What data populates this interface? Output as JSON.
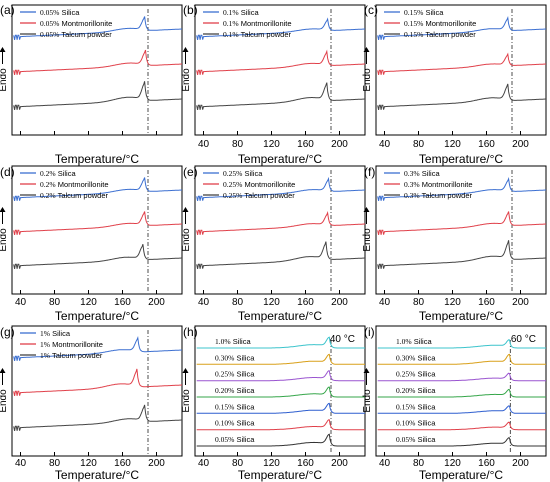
{
  "figure": {
    "x_axis_label": "Temperature/°C",
    "y_axis_label": "Endo"
  },
  "chart_data": [
    {
      "panel": "(a)",
      "type": "line",
      "xlim": [
        30,
        230
      ],
      "xticks": [
        40,
        80,
        120,
        160,
        200
      ],
      "tick_labels_shown": false,
      "xlabel": "Temperature/°C",
      "ylabel": "Endo",
      "dashed_line_x": 190,
      "series": [
        {
          "name": "0.05% Silica",
          "label_prefix": "0.05%",
          "label_text": " Silica",
          "color": "#3b6fd1",
          "peak_x": 186,
          "peak_h": 0.55
        },
        {
          "name": "0.05% Montmorillonite",
          "label_prefix": "0.05%",
          "label_text": " Montmorillonite",
          "color": "#e0404a",
          "peak_x": 187,
          "peak_h": 0.6
        },
        {
          "name": "0.05% Talcum powder",
          "label_prefix": "0.05%",
          "label_text": " Talcum powder",
          "color": "#444444",
          "peak_x": 186,
          "peak_h": 0.75
        }
      ]
    },
    {
      "panel": "(b)",
      "type": "line",
      "xlim": [
        30,
        230
      ],
      "xticks": [
        40,
        80,
        120,
        160,
        200
      ],
      "tick_labels_shown": true,
      "xlabel": "Temperature/°C",
      "ylabel": "Endo",
      "dashed_line_x": 190,
      "series": [
        {
          "name": "0.1% Silica",
          "label_prefix": "0.1%",
          "label_text": " Silica",
          "color": "#3b6fd1",
          "peak_x": 186,
          "peak_h": 0.45
        },
        {
          "name": "0.1% Montmorillonite",
          "label_prefix": "0.1%",
          "label_text": " Montmorillonite",
          "color": "#e0404a",
          "peak_x": 185,
          "peak_h": 0.55
        },
        {
          "name": "0.1% Talcum powder",
          "label_prefix": "0.1%",
          "label_text": " Talcum powder",
          "color": "#444444",
          "peak_x": 185,
          "peak_h": 0.7
        }
      ]
    },
    {
      "panel": "(c)",
      "type": "line",
      "xlim": [
        30,
        230
      ],
      "xticks": [
        40,
        80,
        120,
        160,
        200
      ],
      "tick_labels_shown": true,
      "xlabel": "Temperature/°C",
      "ylabel": "Endo",
      "dashed_line_x": 190,
      "series": [
        {
          "name": "0.15% Silica",
          "label_prefix": "0.15%",
          "label_text": " Silica",
          "color": "#3b6fd1",
          "peak_x": 185,
          "peak_h": 0.5
        },
        {
          "name": "0.15% Montmorillonite",
          "label_prefix": "0.15%",
          "label_text": " Montmorillonite",
          "color": "#e0404a",
          "peak_x": 185,
          "peak_h": 0.45
        },
        {
          "name": "0.15% Talcum powder",
          "label_prefix": "0.15%",
          "label_text": " Talcum powder",
          "color": "#444444",
          "peak_x": 185,
          "peak_h": 0.65
        }
      ]
    },
    {
      "panel": "(d)",
      "type": "line",
      "xlim": [
        30,
        230
      ],
      "xticks": [
        40,
        80,
        120,
        160,
        200
      ],
      "tick_labels_shown": true,
      "xlabel": "Temperature/°C",
      "ylabel": "Endo",
      "dashed_line_x": 190,
      "series": [
        {
          "name": "0.2% Silica",
          "label_prefix": "0.2%",
          "label_text": " Silica",
          "color": "#3b6fd1",
          "peak_x": 186,
          "peak_h": 0.55
        },
        {
          "name": "0.2% Montmorillonite",
          "label_prefix": "0.2%",
          "label_text": " Montmorillonite",
          "color": "#e0404a",
          "peak_x": 186,
          "peak_h": 0.55
        },
        {
          "name": "0.2% Talcum powder",
          "label_prefix": "0.2%",
          "label_text": " Talcum powder",
          "color": "#444444",
          "peak_x": 184,
          "peak_h": 0.6
        }
      ]
    },
    {
      "panel": "(e)",
      "type": "line",
      "xlim": [
        30,
        230
      ],
      "xticks": [
        40,
        80,
        120,
        160,
        200
      ],
      "tick_labels_shown": true,
      "xlabel": "Temperature/°C",
      "ylabel": "Endo",
      "dashed_line_x": 190,
      "series": [
        {
          "name": "0.25% Silica",
          "label_prefix": "0.25%",
          "label_text": " Silica",
          "color": "#3b6fd1",
          "peak_x": 187,
          "peak_h": 0.5
        },
        {
          "name": "0.25% Montmorillonite",
          "label_prefix": "0.25%",
          "label_text": " Montmorillonite",
          "color": "#e0404a",
          "peak_x": 186,
          "peak_h": 0.5
        },
        {
          "name": "0.25% Talcum powder",
          "label_prefix": "0.25%",
          "label_text": " Talcum powder",
          "color": "#444444",
          "peak_x": 184,
          "peak_h": 0.7
        }
      ]
    },
    {
      "panel": "(f)",
      "type": "line",
      "xlim": [
        30,
        230
      ],
      "xticks": [
        40,
        80,
        120,
        160,
        200
      ],
      "tick_labels_shown": true,
      "xlabel": "Temperature/°C",
      "ylabel": "Endo",
      "dashed_line_x": 190,
      "series": [
        {
          "name": "0.3% Silica",
          "label_prefix": "0.3%",
          "label_text": " Silica",
          "color": "#3b6fd1",
          "peak_x": 186,
          "peak_h": 0.5
        },
        {
          "name": "0.3% Montmorillonite",
          "label_prefix": "0.3%",
          "label_text": " Montmorillonite",
          "color": "#e0404a",
          "peak_x": 186,
          "peak_h": 0.55
        },
        {
          "name": "0.3% Talcum powder",
          "label_prefix": "0.3%",
          "label_text": " Talcum powder",
          "color": "#444444",
          "peak_x": 186,
          "peak_h": 0.75
        }
      ]
    },
    {
      "panel": "(g)",
      "type": "line",
      "xlim": [
        30,
        230
      ],
      "xticks": [
        40,
        80,
        120,
        160,
        200
      ],
      "tick_labels_shown": true,
      "xlabel": "Temperature/°C",
      "ylabel": "Endo",
      "dashed_line_x": 190,
      "series": [
        {
          "name": "1% Silica",
          "label_prefix": "1%",
          "label_text": " Silica",
          "color": "#3b6fd1",
          "peak_x": 178,
          "peak_h": 0.55
        },
        {
          "name": "1% Montmorillonite",
          "label_prefix": "1%",
          "label_text": " Montmorillonite",
          "color": "#e0404a",
          "peak_x": 177,
          "peak_h": 0.7
        },
        {
          "name": "1% Talcum powder",
          "label_prefix": "1%",
          "label_text": " Talcum powder",
          "color": "#444444",
          "peak_x": 186,
          "peak_h": 0.65
        }
      ]
    },
    {
      "panel": "(h)",
      "type": "line",
      "xlim": [
        30,
        230
      ],
      "xticks": [
        40,
        80,
        120,
        160,
        200
      ],
      "tick_labels_shown": true,
      "xlabel": "Temperature/°C",
      "ylabel": "Endo",
      "dashed_line_x": 190,
      "temperature_note": "40 °C",
      "series": [
        {
          "name": "1.0% Silica",
          "label_prefix": "1.0%",
          "label_text": "  Silica",
          "color": "#3cc4cc",
          "peak_x": 188,
          "peak_h": 0.6
        },
        {
          "name": "0.30% Silica",
          "label_prefix": "0.30%",
          "label_text": " Silica",
          "color": "#d9a01a",
          "peak_x": 188,
          "peak_h": 0.55
        },
        {
          "name": "0.25% Silica",
          "label_prefix": "0.25%",
          "label_text": " Silica",
          "color": "#9a55d0",
          "peak_x": 188,
          "peak_h": 0.55
        },
        {
          "name": "0.20% Silica",
          "label_prefix": "0.20%",
          "label_text": " Silica",
          "color": "#36a64a",
          "peak_x": 188,
          "peak_h": 0.55
        },
        {
          "name": "0.15% Silica",
          "label_prefix": "0.15%",
          "label_text": " Silica",
          "color": "#2f5fcf",
          "peak_x": 188,
          "peak_h": 0.55
        },
        {
          "name": "0.10% Silica",
          "label_prefix": "0.10%",
          "label_text": " Silica",
          "color": "#e0404a",
          "peak_x": 188,
          "peak_h": 0.55
        },
        {
          "name": "0.05% Silica",
          "label_prefix": "0.05%",
          "label_text": " Silica",
          "color": "#333333",
          "peak_x": 188,
          "peak_h": 0.65
        }
      ]
    },
    {
      "panel": "(i)",
      "type": "line",
      "xlim": [
        30,
        230
      ],
      "xticks": [
        40,
        80,
        120,
        160,
        200
      ],
      "tick_labels_shown": true,
      "xlabel": "Temperature/°C",
      "ylabel": "Endo",
      "dashed_line_x": 188,
      "temperature_note": "60 °C",
      "series": [
        {
          "name": "1.0% Silica",
          "label_prefix": "1.0%",
          "label_text": "  Silica",
          "color": "#3cc4cc",
          "peak_x": 187,
          "peak_h": 0.45
        },
        {
          "name": "0.30% Silica",
          "label_prefix": "0.30%",
          "label_text": " Silica",
          "color": "#d9a01a",
          "peak_x": 187,
          "peak_h": 0.55
        },
        {
          "name": "0.25% Silica",
          "label_prefix": "0.25%",
          "label_text": " Silica",
          "color": "#9a55d0",
          "peak_x": 187,
          "peak_h": 0.4
        },
        {
          "name": "0.20% Silica",
          "label_prefix": "0.20%",
          "label_text": " Silica",
          "color": "#36a64a",
          "peak_x": 187,
          "peak_h": 0.4
        },
        {
          "name": "0.15% Silica",
          "label_prefix": "0.15%",
          "label_text": " Silica",
          "color": "#2f5fcf",
          "peak_x": 187,
          "peak_h": 0.4
        },
        {
          "name": "0.10% Silica",
          "label_prefix": "0.10%",
          "label_text": " Silica",
          "color": "#e0404a",
          "peak_x": 187,
          "peak_h": 0.4
        },
        {
          "name": "0.05% Silica",
          "label_prefix": "0.05%",
          "label_text": " Silica",
          "color": "#333333",
          "peak_x": 187,
          "peak_h": 0.45
        }
      ]
    }
  ]
}
